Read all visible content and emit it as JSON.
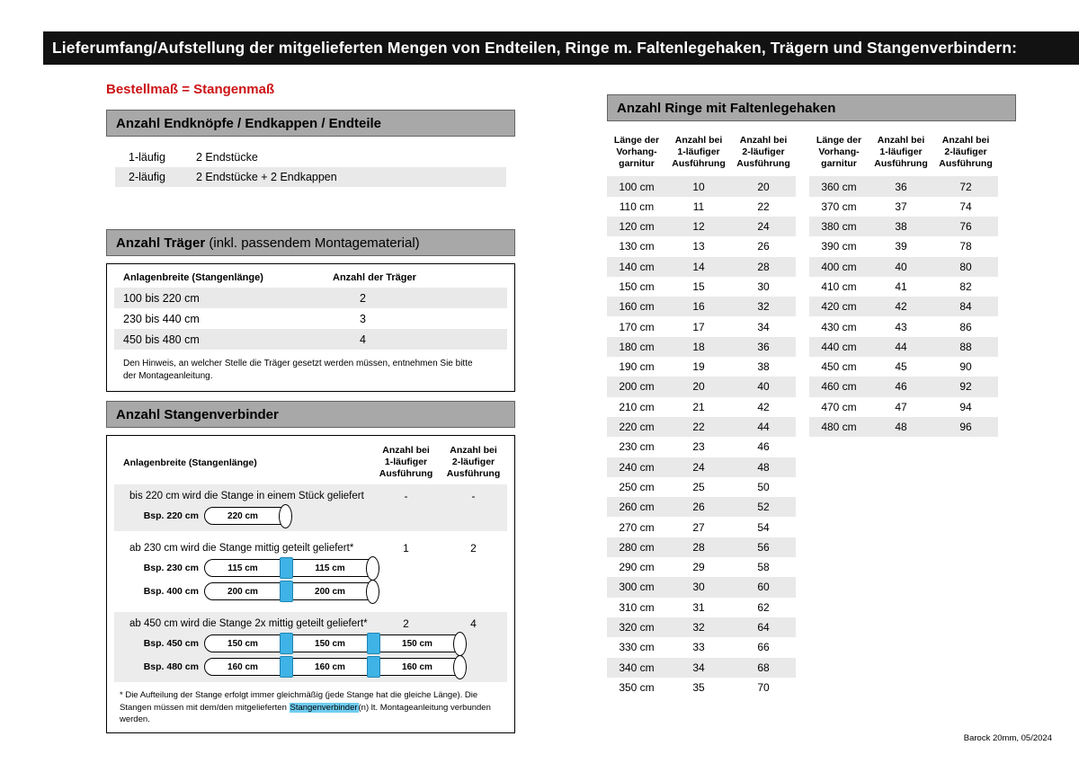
{
  "colors": {
    "accent_blue": "#3fb3e5",
    "highlight_blue": "#6fcdf1",
    "title_red": "#cc1417",
    "bar_gray": "#a8a8a8",
    "zebra_gray": "#e9e9e9",
    "topbar_black": "#121212"
  },
  "header": {
    "title": "Lieferumfang/Aufstellung der mitgelieferten Mengen von Endteilen, Ringe m. Faltenlegehaken, Trägern und Stangenverbindern:",
    "subtitle": "Bestellmaß = Stangenmaß"
  },
  "footer": {
    "text": "Barock 20mm, 05/2024"
  },
  "endteile": {
    "title": "Anzahl Endknöpfe / Endkappen / Endteile",
    "rows": [
      {
        "label": "1-läufig",
        "value": "2 Endstücke"
      },
      {
        "label": "2-läufig",
        "value": "2 Endstücke + 2 Endkappen"
      }
    ]
  },
  "traeger": {
    "title_bold": "Anzahl Träger",
    "title_normal": " (inkl. passendem Montagematerial)",
    "col_width": "Anlagenbreite (Stangenlänge)",
    "col_count": "Anzahl der Träger",
    "rows": [
      {
        "range": "100 bis 220 cm",
        "count": "2"
      },
      {
        "range": "230 bis 440 cm",
        "count": "3"
      },
      {
        "range": "450 bis 480 cm",
        "count": "4"
      }
    ],
    "note": "Den Hinweis, an welcher Stelle die Träger gesetzt werden müssen, entnehmen Sie bitte der Montageanleitung."
  },
  "verbinder": {
    "title": "Anzahl Stangenverbinder",
    "col_width": "Anlagenbreite (Stangenlänge)",
    "col_one": "Anzahl bei\n1-läufiger\nAusführung",
    "col_two": "Anzahl bei\n2-läufiger\nAusführung",
    "groups": [
      {
        "text": "bis 220 cm wird die Stange in einem Stück geliefert",
        "count1": "-",
        "count2": "-",
        "examples": [
          {
            "label": "Bsp. 220 cm",
            "segments": [
              "220 cm"
            ]
          }
        ]
      },
      {
        "text": "ab 230 cm wird die Stange mittig geteilt geliefert*",
        "count1": "1",
        "count2": "2",
        "examples": [
          {
            "label": "Bsp. 230 cm",
            "segments": [
              "115 cm",
              "115 cm"
            ]
          },
          {
            "label": "Bsp. 400 cm",
            "segments": [
              "200 cm",
              "200 cm"
            ]
          }
        ]
      },
      {
        "text": "ab 450 cm wird die Stange 2x mittig geteilt geliefert*",
        "count1": "2",
        "count2": "4",
        "examples": [
          {
            "label": "Bsp. 450 cm",
            "segments": [
              "150 cm",
              "150 cm",
              "150 cm"
            ]
          },
          {
            "label": "Bsp. 480 cm",
            "segments": [
              "160 cm",
              "160 cm",
              "160 cm"
            ]
          }
        ]
      }
    ],
    "footnote_pre": "* Die Aufteilung der Stange erfolgt immer gleichmäßig (jede Stange hat die gleiche Länge). Die Stangen müssen mit dem/den mitgelieferten ",
    "footnote_highlight": "Stangenverbinder",
    "footnote_post": "(n) lt. Montageanleitung verbunden werden."
  },
  "ringe": {
    "title": "Anzahl Ringe mit Faltenlegehaken",
    "col_len": "Länge der\nVorhang-\ngarnitur",
    "col_one": "Anzahl bei\n1-läufiger\nAusführung",
    "col_two": "Anzahl bei\n2-läufiger\nAusführung",
    "table1": [
      {
        "len": "100 cm",
        "one": "10",
        "two": "20"
      },
      {
        "len": "110 cm",
        "one": "11",
        "two": "22"
      },
      {
        "len": "120 cm",
        "one": "12",
        "two": "24"
      },
      {
        "len": "130 cm",
        "one": "13",
        "two": "26"
      },
      {
        "len": "140 cm",
        "one": "14",
        "two": "28"
      },
      {
        "len": "150 cm",
        "one": "15",
        "two": "30"
      },
      {
        "len": "160 cm",
        "one": "16",
        "two": "32"
      },
      {
        "len": "170 cm",
        "one": "17",
        "two": "34"
      },
      {
        "len": "180 cm",
        "one": "18",
        "two": "36"
      },
      {
        "len": "190 cm",
        "one": "19",
        "two": "38"
      },
      {
        "len": "200 cm",
        "one": "20",
        "two": "40"
      },
      {
        "len": "210 cm",
        "one": "21",
        "two": "42"
      },
      {
        "len": "220 cm",
        "one": "22",
        "two": "44"
      },
      {
        "len": "230 cm",
        "one": "23",
        "two": "46"
      },
      {
        "len": "240 cm",
        "one": "24",
        "two": "48"
      },
      {
        "len": "250 cm",
        "one": "25",
        "two": "50"
      },
      {
        "len": "260 cm",
        "one": "26",
        "two": "52"
      },
      {
        "len": "270 cm",
        "one": "27",
        "two": "54"
      },
      {
        "len": "280 cm",
        "one": "28",
        "two": "56"
      },
      {
        "len": "290 cm",
        "one": "29",
        "two": "58"
      },
      {
        "len": "300 cm",
        "one": "30",
        "two": "60"
      },
      {
        "len": "310 cm",
        "one": "31",
        "two": "62"
      },
      {
        "len": "320 cm",
        "one": "32",
        "two": "64"
      },
      {
        "len": "330 cm",
        "one": "33",
        "two": "66"
      },
      {
        "len": "340 cm",
        "one": "34",
        "two": "68"
      },
      {
        "len": "350 cm",
        "one": "35",
        "two": "70"
      }
    ],
    "table2": [
      {
        "len": "360 cm",
        "one": "36",
        "two": "72"
      },
      {
        "len": "370 cm",
        "one": "37",
        "two": "74"
      },
      {
        "len": "380 cm",
        "one": "38",
        "two": "76"
      },
      {
        "len": "390 cm",
        "one": "39",
        "two": "78"
      },
      {
        "len": "400 cm",
        "one": "40",
        "two": "80"
      },
      {
        "len": "410 cm",
        "one": "41",
        "two": "82"
      },
      {
        "len": "420 cm",
        "one": "42",
        "two": "84"
      },
      {
        "len": "430 cm",
        "one": "43",
        "two": "86"
      },
      {
        "len": "440 cm",
        "one": "44",
        "two": "88"
      },
      {
        "len": "450 cm",
        "one": "45",
        "two": "90"
      },
      {
        "len": "460 cm",
        "one": "46",
        "two": "92"
      },
      {
        "len": "470 cm",
        "one": "47",
        "two": "94"
      },
      {
        "len": "480 cm",
        "one": "48",
        "two": "96"
      }
    ]
  }
}
